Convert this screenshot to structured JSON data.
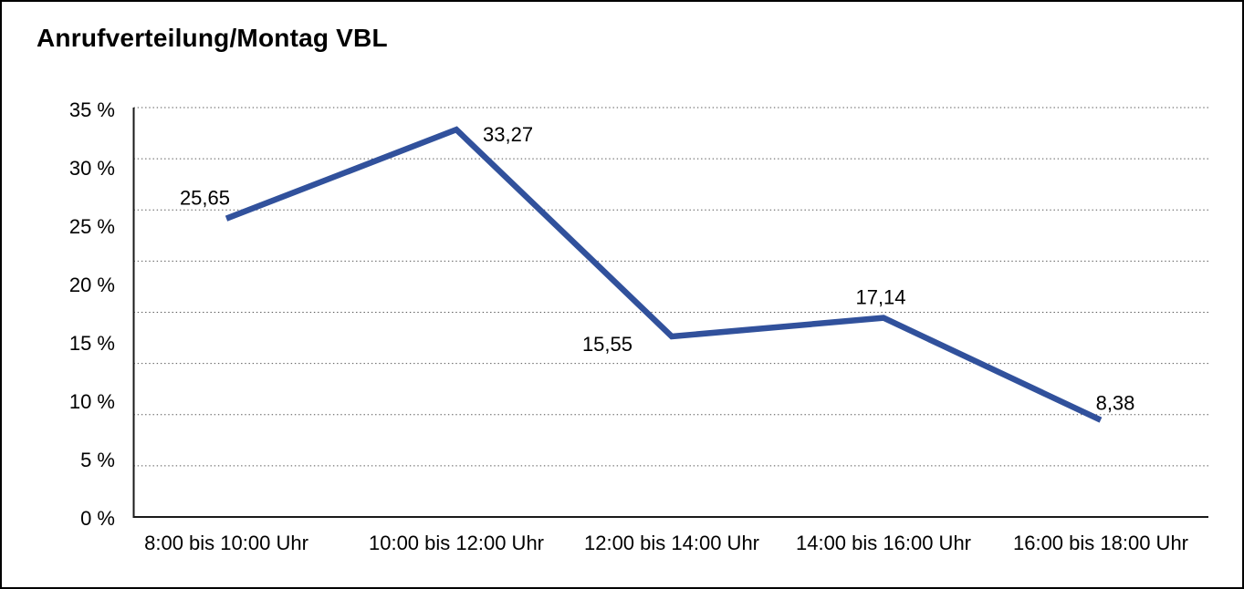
{
  "frame": {
    "background": "#ffffff",
    "border_color": "#000000"
  },
  "chart_data": {
    "type": "line",
    "title": "Anrufverteilung/Montag VBL",
    "categories": [
      "8:00 bis 10:00 Uhr",
      "10:00 bis 12:00 Uhr",
      "12:00 bis 14:00 Uhr",
      "14:00 bis 16:00 Uhr",
      "16:00 bis 18:00 Uhr"
    ],
    "values": [
      25.65,
      33.27,
      15.55,
      17.14,
      8.38
    ],
    "data_labels": [
      "25,65",
      "33,27",
      "15,55",
      "17,14",
      "8,38"
    ],
    "y_ticks": [
      {
        "label": "35 %",
        "value": 35
      },
      {
        "label": "30 %",
        "value": 30
      },
      {
        "label": "25 %",
        "value": 25
      },
      {
        "label": "20 %",
        "value": 20
      },
      {
        "label": "15 %",
        "value": 15
      },
      {
        "label": "10 %",
        "value": 10
      },
      {
        "label": "5 %",
        "value": 5
      },
      {
        "label": "0 %",
        "value": 0
      }
    ],
    "ylim": [
      0,
      35
    ],
    "xlabel": "",
    "ylabel": "",
    "grid": "horizontal-dotted",
    "legend_position": "none",
    "line_color": "#31519c",
    "grid_color": "#555555",
    "axis_color": "#1a1a1a",
    "text_color": "#000000"
  }
}
